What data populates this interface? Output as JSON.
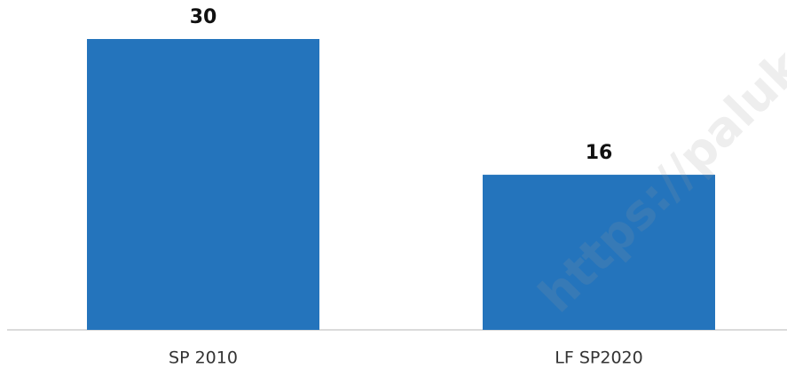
{
  "chart_data": {
    "type": "bar",
    "categories": [
      "SP 2010",
      "LF SP2020"
    ],
    "values": [
      30,
      16
    ],
    "color": "#2474bc",
    "ylim": [
      0,
      30
    ],
    "watermark": "https://paluke"
  }
}
